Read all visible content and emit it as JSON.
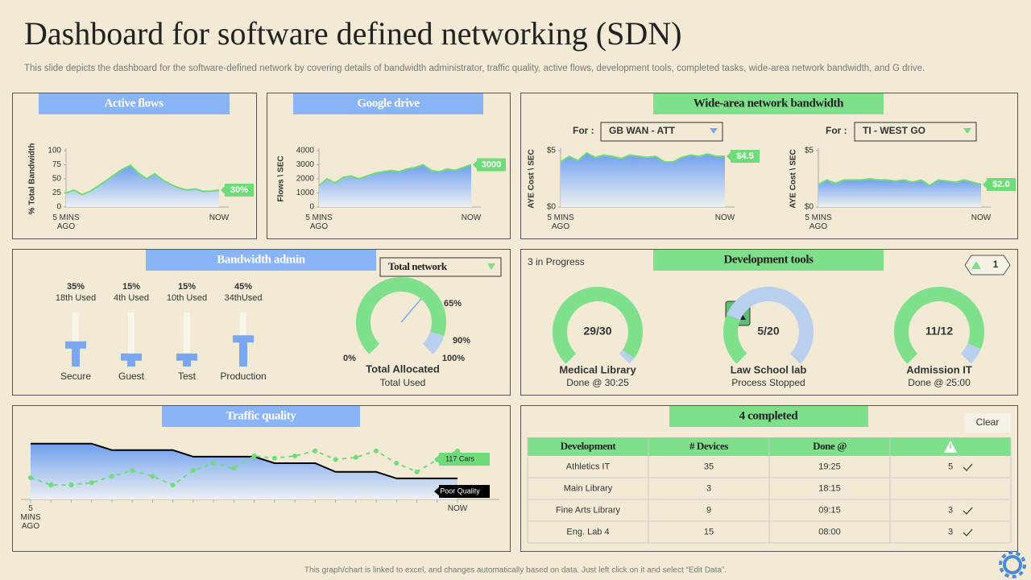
{
  "header": {
    "title": "Dashboard for software defined networking (SDN)",
    "description": "This slide depicts the dashboard for the software-defined network by covering details of bandwidth administrator, traffic quality, active flows, development tools, completed tasks, wide-area network bandwidth, and G drive."
  },
  "chart_data": [
    {
      "type": "area",
      "title": "Active flows",
      "y_label": "% Total Bandwidth",
      "color": "#6fdc7a",
      "categories": [
        "5 MINS AGO",
        null,
        null,
        null,
        null,
        null,
        null,
        null,
        null,
        null,
        null,
        null,
        null,
        null,
        null,
        null,
        null,
        null,
        null,
        "NOW"
      ],
      "values": [
        25,
        30,
        22,
        28,
        37,
        47,
        57,
        67,
        74,
        60,
        50,
        59,
        48,
        40,
        34,
        30,
        32,
        28,
        28,
        30
      ],
      "end_label": "30%",
      "ylim": [
        0,
        100
      ],
      "yticks": [
        0,
        25,
        50,
        75,
        100
      ]
    },
    {
      "type": "area",
      "title": "Google drive",
      "y_label": "Flows \\ SEC",
      "color": "#6fdc7a",
      "categories": [
        "5 MINS AGO",
        null,
        null,
        null,
        null,
        null,
        null,
        null,
        null,
        null,
        null,
        null,
        null,
        null,
        null,
        null,
        null,
        null,
        null,
        "NOW"
      ],
      "values": [
        1500,
        2000,
        1700,
        2100,
        2200,
        2000,
        2200,
        2400,
        2500,
        2600,
        2500,
        2700,
        2800,
        3000,
        2600,
        2500,
        2700,
        2600,
        2800,
        3000
      ],
      "ylim": [
        0,
        4000
      ],
      "yticks": [
        0,
        1000,
        2000,
        3000,
        4000
      ]
    },
    {
      "type": "area",
      "title": "Wide-area network bandwidth",
      "filter_label": "For :",
      "filter": "GB WAN - ATT",
      "filter_color": "#7aa7f0",
      "y_label": "AYE Cost \\ SEC",
      "color": "#6fdc7a",
      "categories": [
        "5 MINS AGO",
        null,
        null,
        null,
        null,
        null,
        null,
        null,
        null,
        null,
        null,
        null,
        null,
        null,
        null,
        null,
        null,
        null,
        null,
        "NOW"
      ],
      "values": [
        4.0,
        4.5,
        4.1,
        4.8,
        4.4,
        4.6,
        4.5,
        4.3,
        4.6,
        4.5,
        4.4,
        4.5,
        4.0,
        4.0,
        4.4,
        4.6,
        4.5,
        4.7,
        4.5,
        4.5
      ],
      "end_label": "$4.5",
      "ylim": [
        0,
        5
      ],
      "yticks": [
        {
          "value": 0,
          "label": "$0"
        },
        {
          "value": 5,
          "label": "$5"
        }
      ]
    },
    {
      "type": "area",
      "filter_label": "For :",
      "filter": "TI - WEST GO",
      "filter_color": "#6fdc7a",
      "y_label": "AYE Cost \\ SEC",
      "color": "#6fdc7a",
      "categories": [
        "5 MINS AGO",
        null,
        null,
        null,
        null,
        null,
        null,
        null,
        null,
        null,
        null,
        null,
        null,
        null,
        null,
        null,
        null,
        null,
        null,
        "NOW"
      ],
      "values": [
        2.0,
        2.4,
        2.1,
        2.4,
        2.4,
        2.4,
        2.5,
        2.4,
        2.4,
        2.3,
        2.4,
        2.2,
        2.4,
        1.9,
        2.4,
        2.3,
        2.2,
        2.4,
        2.2,
        2.0
      ],
      "end_label": "$2.0",
      "ylim": [
        0,
        5
      ],
      "yticks": [
        {
          "value": 0,
          "label": "$0"
        },
        {
          "value": 5,
          "label": "$5"
        }
      ]
    },
    {
      "type": "slider",
      "title": "Bandwidth admin",
      "color": "#7aa7f0",
      "categories": [
        "Secure",
        "Guest",
        "Test",
        "Production"
      ],
      "values": [
        35,
        15,
        15,
        45
      ],
      "value_labels": [
        "35%",
        "15%",
        "15%",
        "45%"
      ],
      "notes": [
        "18th Used",
        "4th Used",
        "10th Used",
        "34thUsed"
      ],
      "ylim": [
        0,
        100
      ]
    },
    {
      "type": "gauge",
      "filter": "Total network",
      "value": 65,
      "threshold": 90,
      "ylim": [
        0,
        100
      ],
      "color": "#7ee08a",
      "ticks": [
        {
          "value": 0,
          "label": "0%"
        },
        {
          "value": 65,
          "label": "65%"
        },
        {
          "value": 90,
          "label": "90%"
        },
        {
          "value": 100,
          "label": "100%"
        }
      ],
      "label": "Total Allocated",
      "sublabel": "Total Used"
    },
    {
      "type": "progress",
      "title": "Development tools",
      "status": "3 in Progress",
      "alerts": 1,
      "color": "#7ee08a",
      "items": [
        {
          "name": "Medical Library",
          "value": 29,
          "total": 30,
          "label": "29/30",
          "note": "Done @ 30:25"
        },
        {
          "name": "Law School lab",
          "value": 5,
          "total": 20,
          "label": "5/20",
          "note": "Process Stopped"
        },
        {
          "name": "Admission  IT",
          "value": 11,
          "total": 12,
          "label": "11/12",
          "note": "Done @ 25:00"
        }
      ]
    },
    {
      "type": "line",
      "title": "Traffic quality",
      "categories": [
        "5 MINS AGO",
        null,
        null,
        null,
        null,
        null,
        null,
        null,
        null,
        null,
        null,
        null,
        null,
        null,
        null,
        null,
        null,
        null,
        null,
        null,
        null,
        "NOW"
      ],
      "ylim": [
        0,
        100
      ],
      "series": [
        {
          "name": "Poor Quality",
          "color": "#000000",
          "values": [
            77,
            77,
            77,
            77,
            68,
            68,
            68,
            68,
            59,
            59,
            59,
            59,
            50,
            50,
            50,
            38,
            38,
            38,
            29,
            29,
            29,
            29
          ]
        },
        {
          "name": "117 Cars",
          "color": "#6fdc7a",
          "values": [
            30,
            20,
            20,
            23,
            32,
            40,
            32,
            20,
            40,
            50,
            43,
            60,
            57,
            60,
            67,
            55,
            58,
            67,
            50,
            38,
            55,
            67
          ]
        }
      ]
    }
  ],
  "completed": {
    "title": "4 completed",
    "button": "Clear",
    "table": {
      "columns": [
        "Development",
        "# Devices",
        "Done @"
      ],
      "rows": [
        [
          "Athletics IT",
          35,
          "19:25",
          5
        ],
        [
          "Main Library",
          3,
          "18:15",
          null
        ],
        [
          "Fine Arts Library",
          9,
          "09:15",
          3
        ],
        [
          "Eng. Lab 4",
          15,
          "08:00",
          3
        ]
      ]
    }
  },
  "footer": "This graph/chart is linked to excel, and changes automatically based on data. Just left click on it and select “Edit Data”."
}
